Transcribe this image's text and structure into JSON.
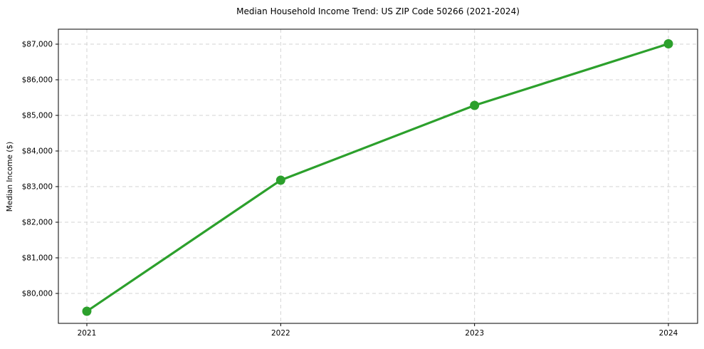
{
  "chart_data": {
    "type": "line",
    "title": "Median Household Income Trend: US ZIP Code 50266 (2021-2024)",
    "xlabel": "",
    "ylabel": "Median Income ($)",
    "categories": [
      "2021",
      "2022",
      "2023",
      "2024"
    ],
    "series": [
      {
        "name": "Median Household Income",
        "values": [
          79500,
          83180,
          85280,
          87010
        ]
      }
    ],
    "y_ticks": [
      {
        "value": 80000,
        "label": "$80,000"
      },
      {
        "value": 81000,
        "label": "$81,000"
      },
      {
        "value": 82000,
        "label": "$82,000"
      },
      {
        "value": 83000,
        "label": "$83,000"
      },
      {
        "value": 84000,
        "label": "$84,000"
      },
      {
        "value": 85000,
        "label": "$85,000"
      },
      {
        "value": 86000,
        "label": "$86,000"
      },
      {
        "value": 87000,
        "label": "$87,000"
      }
    ],
    "ylim": [
      79160,
      87420
    ],
    "grid": true,
    "grid_style": "dashed",
    "legend_position": "none",
    "marker": "circle"
  },
  "colors": {
    "line": "#2ca02c",
    "grid": "#d3d3d3",
    "axis": "#000000",
    "text": "#000000",
    "background": "#ffffff"
  }
}
